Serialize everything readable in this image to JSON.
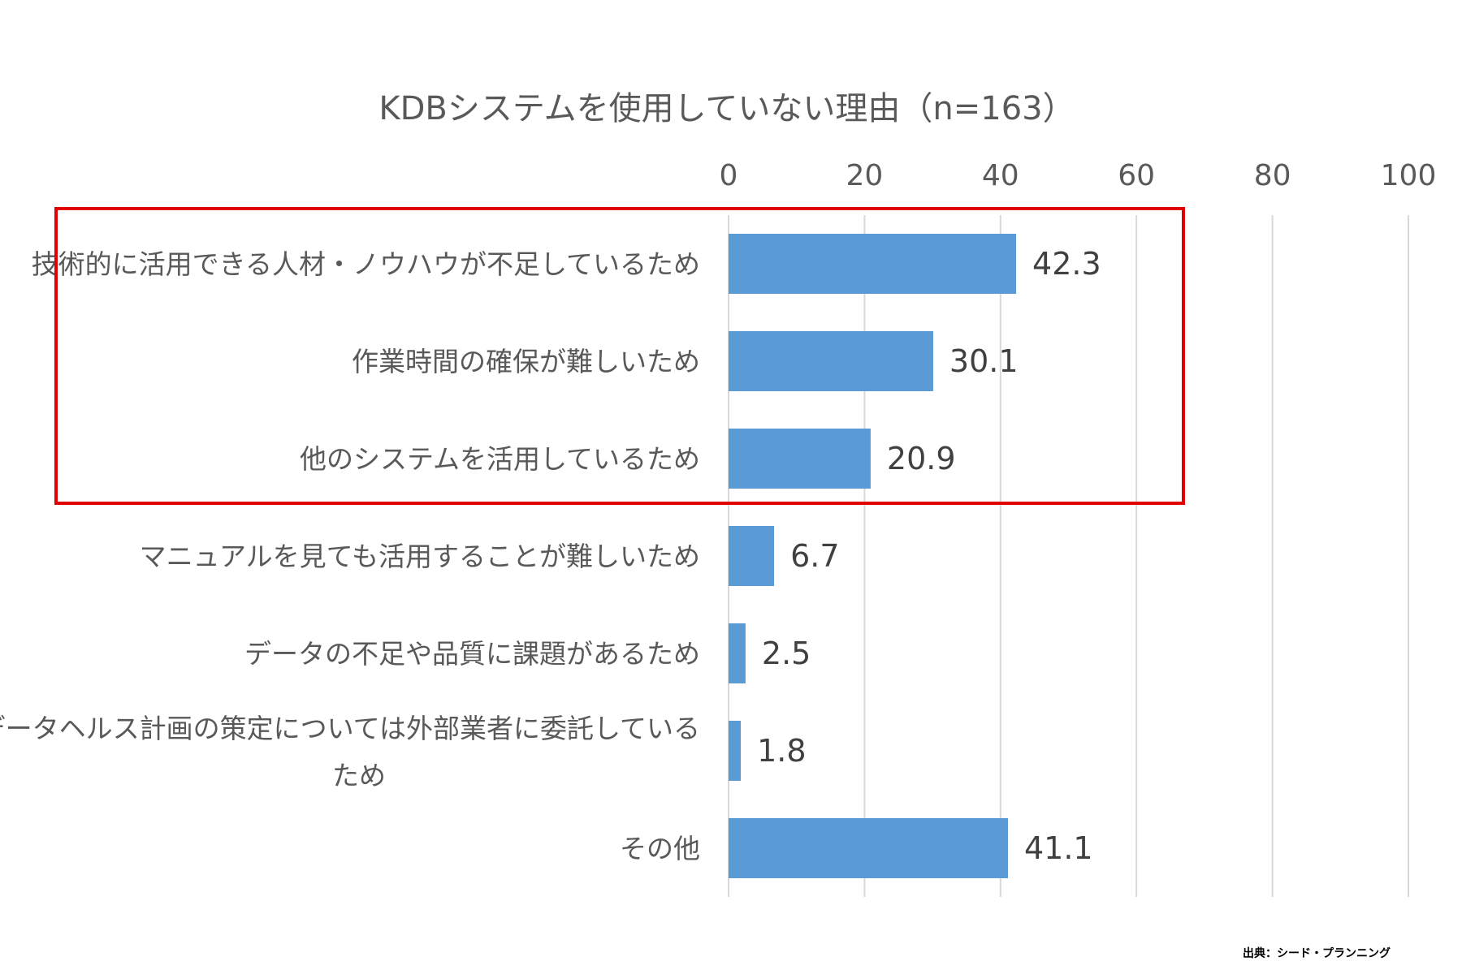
{
  "chart_data": {
    "type": "bar",
    "orientation": "horizontal",
    "title": "KDBシステムを使用していない理由（n=163）",
    "categories": [
      "技術的に活用できる人材・ノウハウが不足しているため",
      "作業時間の確保が難しいため",
      "他のシステムを活用しているため",
      "マニュアルを見ても活用することが難しいため",
      "データの不足や品質に課題があるため",
      "データヘルス計画の策定については外部業者に委託しているため",
      "その他"
    ],
    "category_lines": [
      [
        "技術的に活用できる人材・ノウハウが不足しているため"
      ],
      [
        "作業時間の確保が難しいため"
      ],
      [
        "他のシステムを活用しているため"
      ],
      [
        "マニュアルを見ても活用することが難しいため"
      ],
      [
        "データの不足や品質に課題があるため"
      ],
      [
        "データヘルス計画の策定については外部業者に委託している",
        "ため"
      ],
      [
        "その他"
      ]
    ],
    "values": [
      42.3,
      30.1,
      20.9,
      6.7,
      2.5,
      1.8,
      41.1
    ],
    "value_labels": [
      "42.3",
      "30.1",
      "20.9",
      "6.7",
      "2.5",
      "1.8",
      "41.1"
    ],
    "xlim": [
      0,
      100
    ],
    "x_ticks": [
      "0",
      "20",
      "40",
      "60",
      "80",
      "100"
    ],
    "x_axis_position": "top",
    "grid": true,
    "legend": "none",
    "highlighted_categories": [
      0,
      1,
      2
    ],
    "colors": {
      "bar": "#5b9bd5",
      "highlight_box": "#e00000",
      "grid": "#d9d9d9",
      "text": "#595959"
    }
  },
  "source": "出典：シード・プランニング"
}
